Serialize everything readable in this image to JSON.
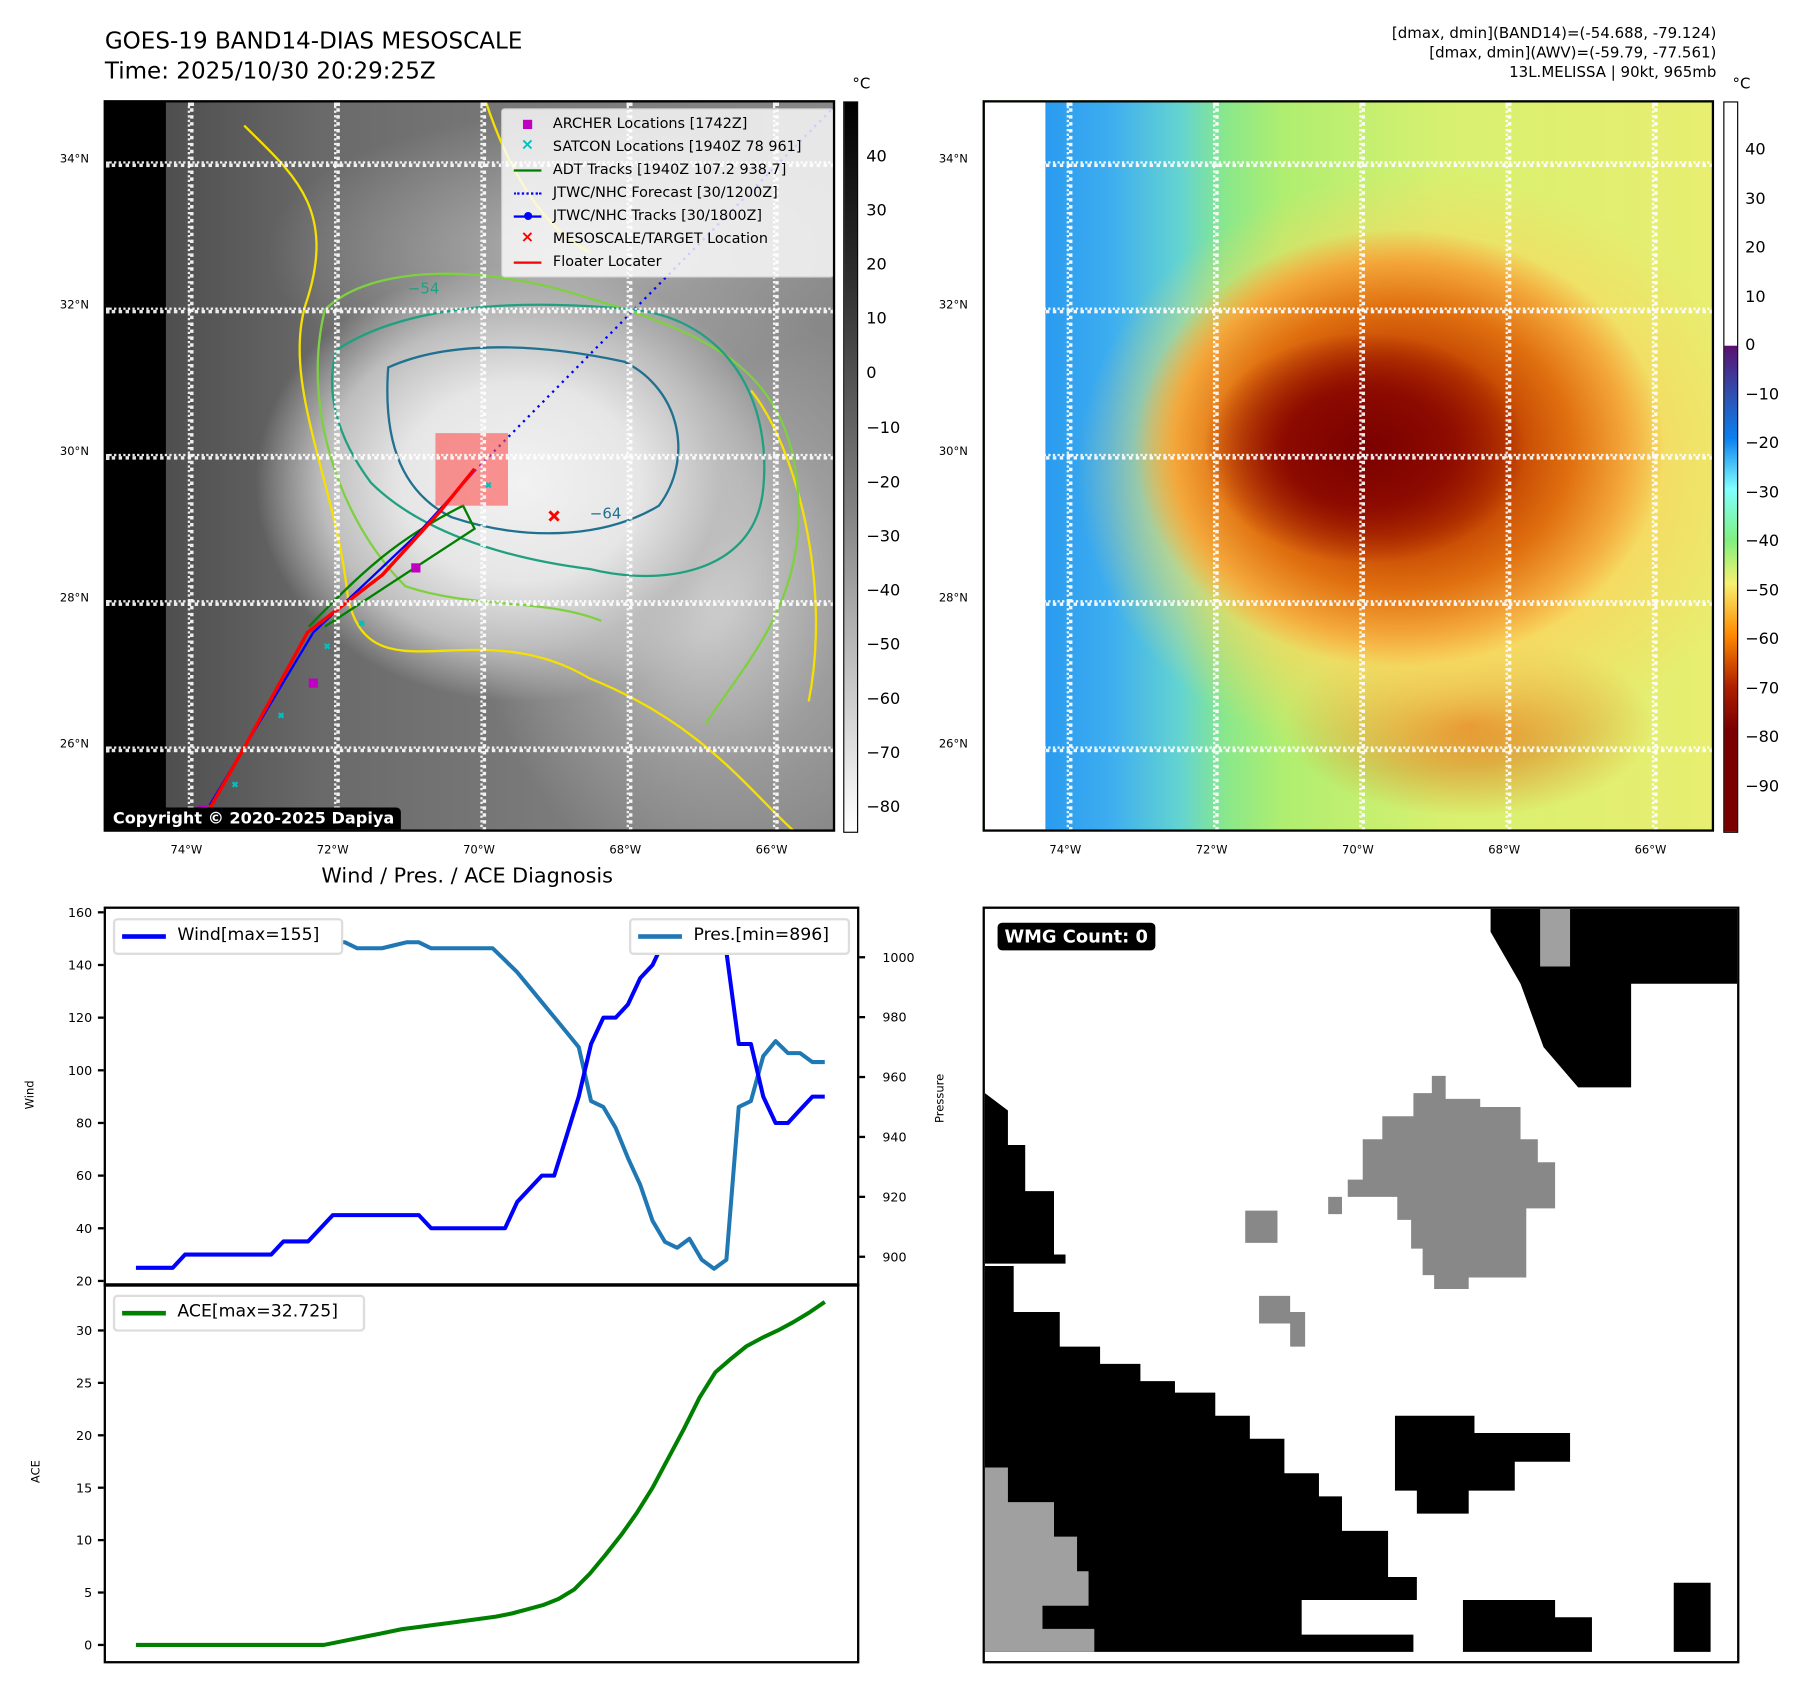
{
  "header": {
    "title": "GOES-19 BAND14-DIAS MESOSCALE",
    "time": "Time: 2025/10/30 20:29:25Z",
    "stats_band14": "[dmax, dmin](BAND14)=(-54.688, -79.124)",
    "stats_awv": "[dmax, dmin](AWV)=(-59.79, -77.561)",
    "storm": "13L.MELISSA | 90kt, 965mb"
  },
  "map_axes": {
    "lon_ticks": [
      "74°W",
      "72°W",
      "70°W",
      "68°W",
      "66°W"
    ],
    "lat_ticks": [
      "34°N",
      "32°N",
      "30°N",
      "28°N",
      "26°N"
    ]
  },
  "left_map": {
    "unit": "°C",
    "colorbar_ticks": [
      "40",
      "30",
      "20",
      "10",
      "0",
      "−10",
      "−20",
      "−30",
      "−40",
      "−50",
      "−60",
      "−70",
      "−80"
    ],
    "contour_labels": [
      "−54",
      "−64"
    ],
    "copyright": "Copyright © 2020-2025 Dapiya",
    "legend": [
      {
        "label": "ARCHER Locations [1742Z]",
        "color": "#c000c0",
        "marker": "square"
      },
      {
        "label": "SATCON Locations [1940Z 78 961]",
        "color": "#00c0c0",
        "marker": "x"
      },
      {
        "label": "ADT Tracks [1940Z 107.2 938.7]",
        "color": "#008000",
        "marker": "line"
      },
      {
        "label": "JTWC/NHC Forecast [30/1200Z]",
        "color": "#0000ff",
        "marker": "dotted"
      },
      {
        "label": "JTWC/NHC Tracks [30/1800Z]",
        "color": "#0000ff",
        "marker": "line-dot"
      },
      {
        "label": "MESOSCALE/TARGET Location",
        "color": "#ff0000",
        "marker": "x"
      },
      {
        "label": "Floater Locater",
        "color": "#ff0000",
        "marker": "line"
      }
    ]
  },
  "right_map": {
    "unit": "°C",
    "colorbar_ticks": [
      "40",
      "30",
      "20",
      "10",
      "0",
      "−10",
      "−20",
      "−30",
      "−40",
      "−50",
      "−60",
      "−70",
      "−80",
      "−90"
    ]
  },
  "wmg": {
    "label": "WMG Count: 0"
  },
  "chart_data": [
    {
      "type": "line",
      "title": "Wind / Pres. / ACE Diagnosis",
      "ylabel": "Wind",
      "ylabel_right": "Pressure",
      "ylim": [
        20,
        160
      ],
      "ylim_right": [
        890,
        1015
      ],
      "yticks": [
        20,
        40,
        60,
        80,
        100,
        120,
        140,
        160
      ],
      "yticks_right": [
        900,
        920,
        940,
        960,
        980,
        1000
      ],
      "series": [
        {
          "name": "Wind[max=155]",
          "color": "#0000ff",
          "axis": "left",
          "values": [
            25,
            25,
            25,
            25,
            30,
            30,
            30,
            30,
            30,
            30,
            30,
            30,
            35,
            35,
            35,
            40,
            45,
            45,
            45,
            45,
            45,
            45,
            45,
            45,
            40,
            40,
            40,
            40,
            40,
            40,
            40,
            50,
            55,
            60,
            60,
            75,
            90,
            110,
            120,
            120,
            125,
            135,
            140,
            150,
            150,
            150,
            150,
            155,
            145,
            110,
            110,
            90,
            80,
            80,
            85,
            90,
            90
          ]
        },
        {
          "name": "Pres.[min=896]",
          "color": "#1f77b4",
          "axis": "right",
          "values": [
            1011,
            1011,
            1011,
            1011,
            1011,
            1010,
            1010,
            1010,
            1009,
            1008,
            1008,
            1008,
            1007,
            1006,
            1005,
            1005,
            1005,
            1005,
            1003,
            1003,
            1003,
            1004,
            1005,
            1005,
            1003,
            1003,
            1003,
            1003,
            1003,
            1003,
            999,
            995,
            990,
            985,
            980,
            975,
            970,
            952,
            950,
            943,
            933,
            924,
            912,
            905,
            903,
            906,
            899,
            896,
            899,
            950,
            952,
            967,
            972,
            968,
            968,
            965,
            965
          ]
        }
      ]
    },
    {
      "type": "line",
      "ylabel": "ACE",
      "ylim": [
        -1.5,
        34
      ],
      "yticks": [
        0,
        5,
        10,
        15,
        20,
        25,
        30
      ],
      "series": [
        {
          "name": "ACE[max=32.725]",
          "color": "#008000",
          "values": [
            0,
            0,
            0,
            0,
            0,
            0,
            0,
            0,
            0,
            0,
            0,
            0,
            0,
            0.3,
            0.6,
            0.9,
            1.2,
            1.5,
            1.7,
            1.9,
            2.1,
            2.3,
            2.5,
            2.7,
            3.0,
            3.4,
            3.8,
            4.4,
            5.3,
            6.8,
            8.6,
            10.5,
            12.6,
            15.0,
            17.8,
            20.6,
            23.6,
            26.0,
            27.3,
            28.5,
            29.3,
            30.0,
            30.8,
            31.7,
            32.725
          ]
        }
      ]
    }
  ]
}
